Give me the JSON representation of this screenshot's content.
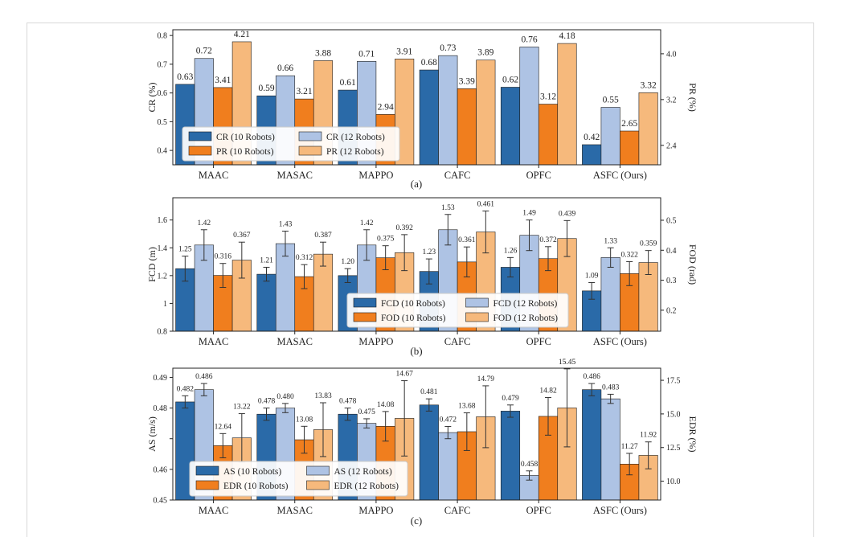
{
  "chart_data": [
    {
      "type": "bar",
      "panel_label": "(a)",
      "categories": [
        "MAAC",
        "MASAC",
        "MAPPO",
        "CAFC",
        "OPFC",
        "ASFC (Ours)"
      ],
      "ylabel": "CR (%)",
      "ylabel_right": "PR (%)",
      "ylim": [
        0.35,
        0.82
      ],
      "ylim_right": [
        2.06,
        4.42
      ],
      "yticks": [
        0.4,
        0.5,
        0.6,
        0.7,
        0.8
      ],
      "yticks_right": [
        2.4,
        3.2,
        4.0
      ],
      "series": [
        {
          "name": "CR (10 Robots)",
          "axis": "left",
          "color": "#2a6aa8",
          "values": [
            0.63,
            0.59,
            0.61,
            0.68,
            0.62,
            0.42
          ],
          "labels": [
            "0.63",
            "0.59",
            "0.61",
            "0.68",
            "0.62",
            "0.42"
          ]
        },
        {
          "name": "CR (12 Robots)",
          "axis": "left",
          "color": "#aec3e4",
          "values": [
            0.72,
            0.66,
            0.71,
            0.73,
            0.76,
            0.55
          ],
          "labels": [
            "0.72",
            "0.66",
            "0.71",
            "0.73",
            "0.76",
            "0.55"
          ]
        },
        {
          "name": "PR (10 Robots)",
          "axis": "right",
          "color": "#f07e1e",
          "values": [
            3.41,
            3.21,
            2.94,
            3.39,
            3.12,
            2.65
          ],
          "labels": [
            "3.41",
            "3.21",
            "2.94",
            "3.39",
            "3.12",
            "2.65"
          ]
        },
        {
          "name": "PR (12 Robots)",
          "axis": "right",
          "color": "#f6b97c",
          "values": [
            4.21,
            3.88,
            3.91,
            3.89,
            4.18,
            3.32
          ],
          "labels": [
            "4.21",
            "3.88",
            "3.91",
            "3.89",
            "4.18",
            "3.32"
          ]
        }
      ],
      "legend": {
        "placement": "lower-center",
        "entries": [
          "CR (10 Robots)",
          "CR (12 Robots)",
          "PR (10 Robots)",
          "PR (12 Robots)"
        ]
      }
    },
    {
      "type": "bar",
      "panel_label": "(b)",
      "categories": [
        "MAAC",
        "MASAC",
        "MAPPO",
        "CAFC",
        "OPFC",
        "ASFC (Ours)"
      ],
      "ylabel": "FCD (m)",
      "ylabel_right": "FOD (rad)",
      "ylim": [
        0.8,
        1.76
      ],
      "ylim_right": [
        0.13,
        0.575
      ],
      "yticks": [
        0.8,
        1.0,
        1.2,
        1.4,
        1.6
      ],
      "yticks_right": [
        0.2,
        0.3,
        0.4,
        0.5
      ],
      "series": [
        {
          "name": "FCD (10 Robots)",
          "axis": "left",
          "color": "#2a6aa8",
          "values": [
            1.25,
            1.21,
            1.2,
            1.23,
            1.26,
            1.09
          ],
          "errors": [
            0.09,
            0.05,
            0.05,
            0.09,
            0.07,
            0.06
          ],
          "labels": [
            "1.25",
            "1.21",
            "1.20",
            "1.23",
            "1.26",
            "1.09"
          ]
        },
        {
          "name": "FCD (12 Robots)",
          "axis": "left",
          "color": "#aec3e4",
          "values": [
            1.42,
            1.43,
            1.42,
            1.53,
            1.49,
            1.33
          ],
          "errors": [
            0.11,
            0.09,
            0.11,
            0.11,
            0.11,
            0.07
          ],
          "labels": [
            "1.42",
            "1.43",
            "1.42",
            "1.53",
            "1.49",
            "1.33"
          ]
        },
        {
          "name": "FOD (10 Robots)",
          "axis": "right",
          "color": "#f07e1e",
          "values": [
            0.316,
            0.312,
            0.375,
            0.361,
            0.372,
            0.322
          ],
          "errors": [
            0.04,
            0.04,
            0.04,
            0.05,
            0.04,
            0.04
          ],
          "labels": [
            "0.316",
            "0.312",
            "0.375",
            "0.361",
            "0.372",
            "0.322"
          ]
        },
        {
          "name": "FOD (12 Robots)",
          "axis": "right",
          "color": "#f6b97c",
          "values": [
            0.367,
            0.387,
            0.392,
            0.461,
            0.439,
            0.359
          ],
          "errors": [
            0.06,
            0.04,
            0.06,
            0.07,
            0.06,
            0.04
          ],
          "labels": [
            "0.367",
            "0.387",
            "0.392",
            "0.461",
            "0.439",
            "0.359"
          ]
        }
      ],
      "legend": {
        "placement": "lower-center",
        "entries": [
          "FCD (10 Robots)",
          "FCD (12 Robots)",
          "FOD (10 Robots)",
          "FOD (12 Robots)"
        ]
      }
    },
    {
      "type": "bar",
      "panel_label": "(c)",
      "categories": [
        "MAAC",
        "MASAC",
        "MAPPO",
        "CAFC",
        "OPFC",
        "ASFC (Ours)"
      ],
      "ylabel": "AS (m/s)",
      "ylabel_right": "EDR (%)",
      "ylim": [
        0.45,
        0.493
      ],
      "ylim_right": [
        8.6,
        18.4
      ],
      "yticks": [
        0.45,
        0.46,
        0.47,
        0.48,
        0.49
      ],
      "ytick_labels": [
        "0.45",
        "0.46",
        "",
        "0.48",
        "0.49"
      ],
      "yticks_right": [
        10.0,
        12.5,
        15.0,
        17.5
      ],
      "series": [
        {
          "name": "AS (10 Robots)",
          "axis": "left",
          "color": "#2a6aa8",
          "values": [
            0.482,
            0.478,
            0.478,
            0.481,
            0.479,
            0.486
          ],
          "errors": [
            0.002,
            0.002,
            0.002,
            0.002,
            0.002,
            0.002
          ],
          "labels": [
            "0.482",
            "0.478",
            "0.478",
            "0.481",
            "0.479",
            "0.486"
          ]
        },
        {
          "name": "AS (12 Robots)",
          "axis": "left",
          "color": "#aec3e4",
          "values": [
            0.486,
            0.48,
            0.475,
            0.472,
            0.458,
            0.483
          ],
          "errors": [
            0.002,
            0.0015,
            0.0015,
            0.002,
            0.0015,
            0.0015
          ],
          "labels": [
            "0.486",
            "0.480",
            "0.475",
            "0.472",
            "0.458",
            "0.483"
          ]
        },
        {
          "name": "EDR (10 Robots)",
          "axis": "right",
          "color": "#f07e1e",
          "values": [
            12.64,
            13.08,
            14.08,
            13.68,
            14.82,
            11.27
          ],
          "errors": [
            0.9,
            1.0,
            1.1,
            1.4,
            1.4,
            0.8
          ],
          "labels": [
            "12.64",
            "13.08",
            "14.08",
            "13.68",
            "14.82",
            "11.27"
          ]
        },
        {
          "name": "EDR (12 Robots)",
          "axis": "right",
          "color": "#f6b97c",
          "values": [
            13.22,
            13.83,
            14.67,
            14.79,
            15.45,
            11.92
          ],
          "errors": [
            1.8,
            2.0,
            2.8,
            2.3,
            2.9,
            1.0
          ],
          "labels": [
            "13.22",
            "13.83",
            "14.67",
            "14.79",
            "15.45",
            "11.92"
          ]
        }
      ],
      "legend": {
        "placement": "lower-left",
        "entries": [
          "AS (10 Robots)",
          "AS (12 Robots)",
          "EDR (10 Robots)",
          "EDR (12 Robots)"
        ]
      }
    }
  ]
}
